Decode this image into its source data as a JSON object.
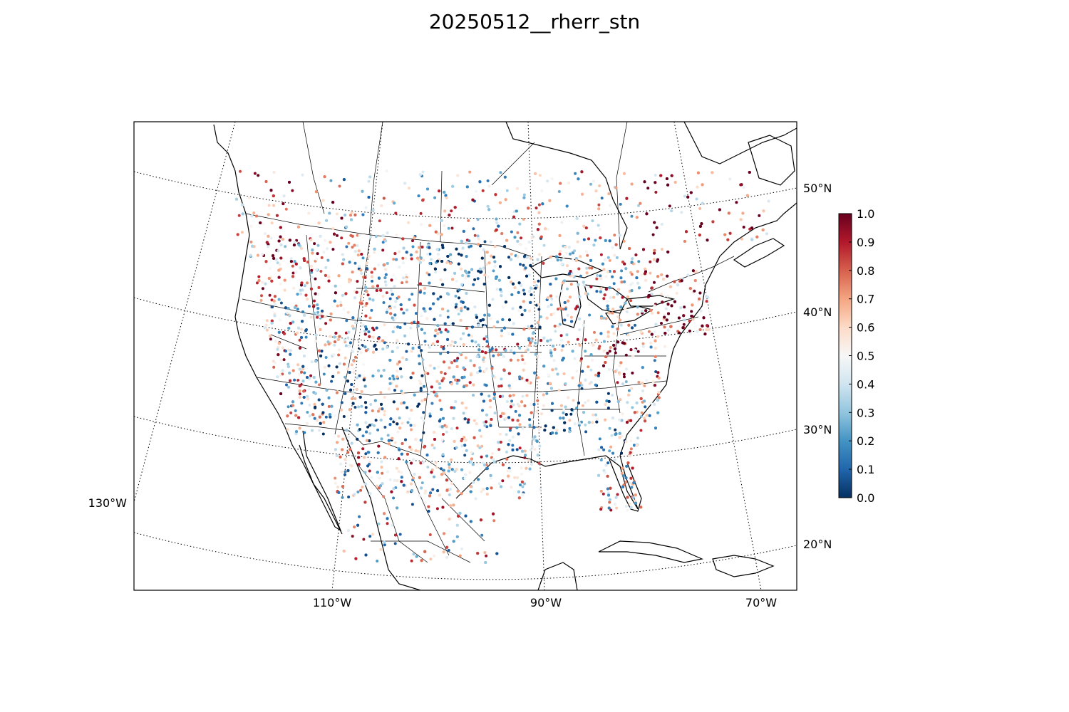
{
  "title": "20250512__rherr_stn",
  "map": {
    "projection": "lambert-conformal",
    "region": "CONUS / North America",
    "lat_labels": [
      "50°N",
      "40°N",
      "30°N",
      "20°N"
    ],
    "lon_labels": [
      "130°W",
      "110°W",
      "90°W",
      "70°W"
    ],
    "graticule_style": "dotted",
    "coastline_color": "#000000",
    "boundary_color": "#000000"
  },
  "colorbar": {
    "colormap": "RdBu_r",
    "min": 0.0,
    "max": 1.0,
    "ticks": [
      "0.0",
      "0.1",
      "0.2",
      "0.3",
      "0.4",
      "0.5",
      "0.6",
      "0.7",
      "0.8",
      "0.9",
      "1.0"
    ],
    "stops": [
      "#053061",
      "#2166ac",
      "#4393c3",
      "#92c5de",
      "#d1e5f0",
      "#f7f7f7",
      "#fddbc7",
      "#f4a582",
      "#d6604d",
      "#b2182b",
      "#67001f"
    ]
  },
  "stations": {
    "description_visible": "scatter of station points colored by value 0–1",
    "high_value_areas": [
      "Northeast US",
      "West Virginia",
      "California Central Valley",
      "Pacific Northwest"
    ],
    "low_value_areas": [
      "Northern Plains",
      "Southeast US",
      "Southwest US"
    ]
  }
}
